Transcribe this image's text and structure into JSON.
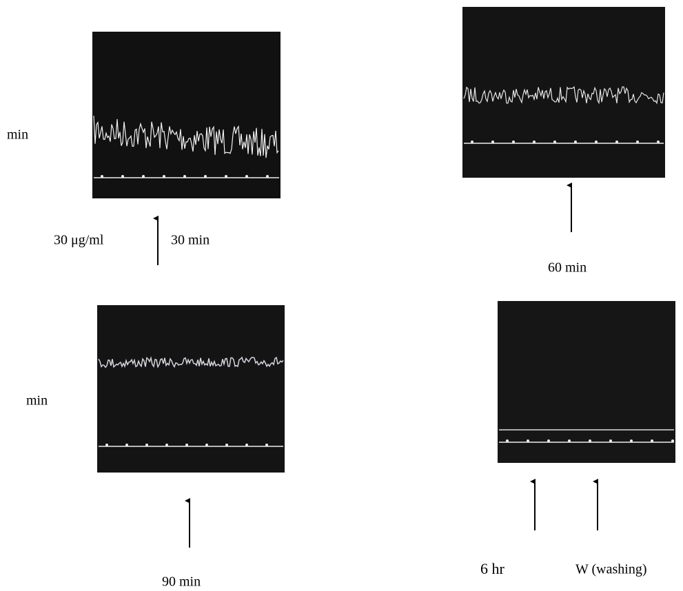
{
  "labels": {
    "top_left_side": "min",
    "dose": "30 μg/ml",
    "dose_time": "30 min",
    "top_right_caption": "60 min",
    "bottom_left_side": "min",
    "bottom_left_caption": "90 min",
    "bottom_right_time": "6 hr",
    "bottom_right_washing": "W (washing)"
  }
}
